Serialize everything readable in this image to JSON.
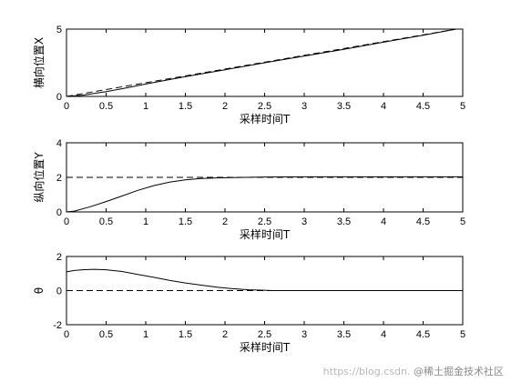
{
  "chart_data": [
    {
      "type": "line",
      "ylabel": "横向位置X",
      "xlabel": "采样时间T",
      "xlim": [
        0,
        5
      ],
      "ylim": [
        0,
        5
      ],
      "xticks": [
        0,
        0.5,
        1,
        1.5,
        2,
        2.5,
        3,
        3.5,
        4,
        4.5,
        5
      ],
      "xtick_labels": [
        "0",
        "0.5",
        "1",
        "1.5",
        "2",
        "2.5",
        "3",
        "3.5",
        "4",
        "4.5",
        "5"
      ],
      "yticks": [
        0,
        5
      ],
      "ytick_labels": [
        "0",
        "5"
      ],
      "series": [
        {
          "style": "dashed",
          "x": [
            0,
            4.92
          ],
          "y": [
            0,
            5
          ]
        },
        {
          "style": "solid",
          "x": [
            0,
            0.2,
            0.5,
            0.8,
            1.0,
            1.3,
            1.6,
            2.0,
            2.5,
            3.0,
            3.5,
            4.0,
            4.5,
            4.9
          ],
          "y": [
            0,
            0.08,
            0.35,
            0.68,
            0.92,
            1.25,
            1.57,
            1.98,
            2.5,
            3.0,
            3.5,
            4.03,
            4.55,
            4.98
          ]
        }
      ]
    },
    {
      "type": "line",
      "ylabel": "纵向位置Y",
      "xlabel": "采样时间T",
      "xlim": [
        0,
        5
      ],
      "ylim": [
        0,
        4
      ],
      "xticks": [
        0,
        0.5,
        1,
        1.5,
        2,
        2.5,
        3,
        3.5,
        4,
        4.5,
        5
      ],
      "xtick_labels": [
        "0",
        "0.5",
        "1",
        "1.5",
        "2",
        "2.5",
        "3",
        "3.5",
        "4",
        "4.5",
        "5"
      ],
      "yticks": [
        0,
        2,
        4
      ],
      "ytick_labels": [
        "0",
        "2",
        "4"
      ],
      "series": [
        {
          "style": "dashed",
          "x": [
            0,
            5
          ],
          "y": [
            2,
            2
          ]
        },
        {
          "style": "solid",
          "x": [
            0,
            0.1,
            0.3,
            0.5,
            0.7,
            0.9,
            1.1,
            1.3,
            1.5,
            1.7,
            1.9,
            2.1,
            2.5,
            3.0,
            4.0,
            5.0
          ],
          "y": [
            0,
            0.05,
            0.3,
            0.6,
            0.92,
            1.25,
            1.52,
            1.72,
            1.85,
            1.93,
            1.97,
            1.99,
            2.02,
            2.03,
            2.03,
            2.03
          ]
        }
      ]
    },
    {
      "type": "line",
      "ylabel": "θ",
      "xlabel": "采样时间T",
      "xlim": [
        0,
        5
      ],
      "ylim": [
        -2,
        2
      ],
      "xticks": [
        0,
        0.5,
        1,
        1.5,
        2,
        2.5,
        3,
        3.5,
        4,
        4.5,
        5
      ],
      "xtick_labels": [
        "0",
        "0.5",
        "1",
        "1.5",
        "2",
        "2.5",
        "3",
        "3.5",
        "4",
        "4.5",
        "5"
      ],
      "yticks": [
        -2,
        0,
        2
      ],
      "ytick_labels": [
        "-2",
        "0",
        "2"
      ],
      "series": [
        {
          "style": "dashed",
          "x": [
            0,
            5
          ],
          "y": [
            0,
            0
          ]
        },
        {
          "style": "solid",
          "x": [
            0,
            0.1,
            0.2,
            0.35,
            0.5,
            0.7,
            0.9,
            1.1,
            1.3,
            1.5,
            1.7,
            1.9,
            2.1,
            2.3,
            2.5,
            2.6,
            3.0,
            5.0
          ],
          "y": [
            1.1,
            1.18,
            1.22,
            1.25,
            1.22,
            1.12,
            0.95,
            0.78,
            0.6,
            0.45,
            0.32,
            0.2,
            0.11,
            0.05,
            0.02,
            0.0,
            0.0,
            0.0
          ]
        }
      ]
    }
  ],
  "watermark": {
    "url_text": "https://blog.csdn.",
    "brand_text": "@稀土掘金技术社区"
  }
}
